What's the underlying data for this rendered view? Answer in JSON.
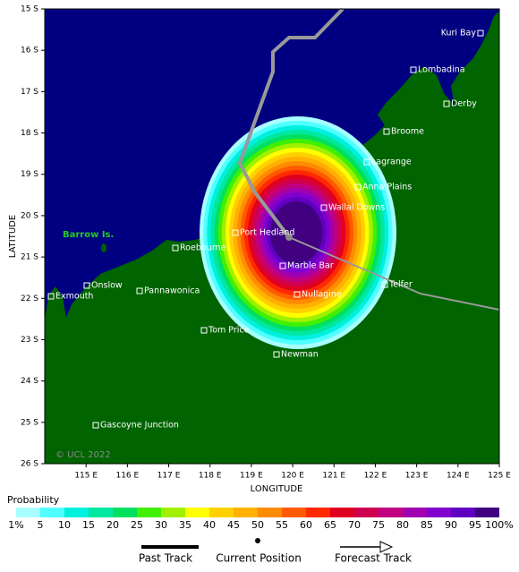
{
  "map": {
    "axis_titles": {
      "y": "LATITUDE",
      "x": "LONGITUDE"
    },
    "lat_ticks": [
      "15 S",
      "16 S",
      "17 S",
      "18 S",
      "19 S",
      "20 S",
      "21 S",
      "22 S",
      "23 S",
      "24 S",
      "25 S",
      "26 S"
    ],
    "lon_ticks": [
      "115 E",
      "116 E",
      "117 E",
      "118 E",
      "119 E",
      "120 E",
      "121 E",
      "122 E",
      "123 E",
      "124 E",
      "125 E"
    ],
    "places": [
      "Kuri Bay",
      "Lombadina",
      "Derby",
      "Broome",
      "Lagrange",
      "Anna Plains",
      "Wallal Downs",
      "Port Hedland",
      "Roebourne",
      "Onslow",
      "Exmouth",
      "Pannawonica",
      "Marble Bar",
      "Nullagine",
      "Telfer",
      "Tom Price",
      "Newman",
      "Gascoyne Junction"
    ],
    "island_label": "Barrow Is.",
    "copyright": "© UCL 2022",
    "land_color": "#006400",
    "sea_color": "#000080"
  },
  "legend": {
    "title": "Probability",
    "labels": [
      "1%",
      "5",
      "10",
      "15",
      "20",
      "25",
      "30",
      "35",
      "40",
      "45",
      "50",
      "55",
      "60",
      "65",
      "70",
      "75",
      "80",
      "85",
      "90",
      "95",
      "100%"
    ],
    "colors": [
      "#a8ffff",
      "#50ffff",
      "#00f0e0",
      "#00e8a0",
      "#00e060",
      "#40f000",
      "#a0f000",
      "#ffff00",
      "#ffd000",
      "#ffb000",
      "#ff8c00",
      "#ff5a00",
      "#ff2800",
      "#e00020",
      "#d00050",
      "#c00080",
      "#a000b0",
      "#8000d0",
      "#6000c0",
      "#400080"
    ],
    "items": [
      "Past Track",
      "Current Position",
      "Forecast Track"
    ]
  }
}
